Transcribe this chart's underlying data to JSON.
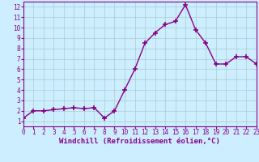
{
  "x": [
    0,
    1,
    2,
    3,
    4,
    5,
    6,
    7,
    8,
    9,
    10,
    11,
    12,
    13,
    14,
    15,
    16,
    17,
    18,
    19,
    20,
    21,
    22,
    23
  ],
  "y": [
    1.3,
    2.0,
    2.0,
    2.1,
    2.2,
    2.3,
    2.2,
    2.3,
    1.3,
    2.0,
    4.0,
    6.0,
    8.5,
    9.5,
    10.3,
    10.6,
    12.2,
    9.8,
    8.5,
    6.5,
    6.5,
    7.2,
    7.2,
    6.5
  ],
  "line_color": "#880088",
  "marker": "+",
  "marker_size": 4,
  "bg_color": "#cceeff",
  "grid_color": "#aacccc",
  "xlabel": "Windchill (Refroidissement éolien,°C)",
  "xlabel_color": "#880088",
  "tick_color": "#880088",
  "spine_color": "#880088",
  "xlim": [
    0,
    23
  ],
  "ylim": [
    0.5,
    12.5
  ],
  "yticks": [
    1,
    2,
    3,
    4,
    5,
    6,
    7,
    8,
    9,
    10,
    11,
    12
  ],
  "xticks": [
    0,
    1,
    2,
    3,
    4,
    5,
    6,
    7,
    8,
    9,
    10,
    11,
    12,
    13,
    14,
    15,
    16,
    17,
    18,
    19,
    20,
    21,
    22,
    23
  ],
  "axis_bg": "#cceeff",
  "tick_fontsize": 5.5,
  "xlabel_fontsize": 6.5,
  "linewidth": 1.0,
  "marker_linewidth": 1.2
}
